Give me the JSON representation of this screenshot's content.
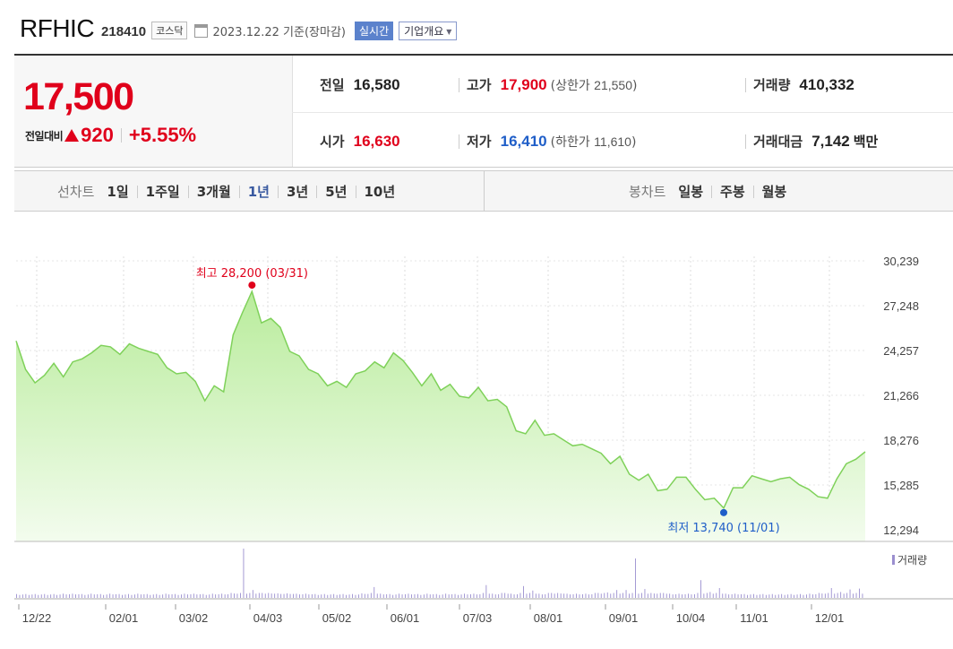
{
  "header": {
    "company": "RFHIC",
    "code": "218410",
    "market": "코스닥",
    "as_of": "2023.12.22  기준(장마감)",
    "realtime_btn": "실시간",
    "corp_info_btn": "기업개요"
  },
  "price": {
    "current": "17,500",
    "change_label": "전일대비",
    "change": "920",
    "change_pct": "+5.55%"
  },
  "stats": {
    "prev_label": "전일",
    "prev": "16,580",
    "high_label": "고가",
    "high": "17,900",
    "upper_label": "(상한가",
    "upper": "21,550",
    "upper_close": ")",
    "volume_label": "거래량",
    "volume": "410,332",
    "open_label": "시가",
    "open": "16,630",
    "low_label": "저가",
    "low": "16,410",
    "lower_label": "(하한가",
    "lower": "11,610",
    "lower_close": ")",
    "amount_label": "거래대금",
    "amount": "7,142",
    "amount_unit": "백만"
  },
  "tabs": {
    "line_label": "선차트",
    "line_items": [
      "1일",
      "1주일",
      "3개월",
      "1년",
      "3년",
      "5년",
      "10년"
    ],
    "line_selected": "1년",
    "candle_label": "봉차트",
    "candle_items": [
      "일봉",
      "주봉",
      "월봉"
    ]
  },
  "colors": {
    "up": "#e0001b",
    "down": "#1f5ec8",
    "line": "#7fd15a",
    "volume": "#9b8fcf",
    "selected_tab": "#3a5aa0"
  },
  "chart_data": {
    "type": "area",
    "y_ticks": [
      "30,239",
      "27,248",
      "24,257",
      "21,266",
      "18,276",
      "15,285",
      "12,294"
    ],
    "ylim": [
      12294,
      30239
    ],
    "x_ticks": [
      "12/22",
      "02/01",
      "03/02",
      "04/03",
      "05/02",
      "06/01",
      "07/03",
      "08/01",
      "09/01",
      "10/04",
      "11/01",
      "12/01"
    ],
    "max_label": "최고 28,200 (03/31)",
    "min_label": "최저 13,740 (11/01)",
    "volume_legend": "거래량",
    "series": [
      {
        "values": [
          24900,
          23000,
          22100,
          22600,
          23400,
          22500,
          23500,
          23700,
          24100,
          24600,
          24500,
          24000,
          24700,
          24400,
          24200,
          24000,
          23100,
          22700,
          22800,
          22200,
          20900,
          21900,
          21500,
          25300,
          26800,
          28200,
          26100,
          26400,
          25800,
          24200,
          23900,
          23000,
          22700,
          21900,
          22200,
          21800,
          22700,
          22900,
          23500,
          23100,
          24100,
          23600,
          22800,
          21900,
          22700,
          21600,
          22000,
          21200,
          21100,
          21800,
          20900,
          21000,
          20500,
          18900,
          18700,
          19600,
          18600,
          18700,
          18300,
          17900,
          18000,
          17700,
          17400,
          16700,
          17200,
          16000,
          15600,
          16000,
          14900,
          15000,
          15800,
          15800,
          15000,
          14300,
          14400,
          13740,
          15100,
          15100,
          15900,
          15700,
          15500,
          15700,
          15800,
          15300,
          15000,
          14500,
          14400,
          15700,
          16700,
          17000,
          17500
        ]
      }
    ],
    "volume": [
      0.06,
      0.06,
      0.06,
      0.06,
      0.06,
      0.07,
      0.07,
      0.06,
      0.07,
      0.06,
      0.07,
      0.06,
      0.06,
      0.07,
      0.06,
      0.06,
      0.07,
      0.06,
      0.07,
      0.07,
      0.06,
      0.07,
      0.07,
      0.09,
      1.0,
      0.16,
      0.1,
      0.09,
      0.08,
      0.08,
      0.07,
      0.07,
      0.06,
      0.06,
      0.06,
      0.06,
      0.06,
      0.08,
      0.22,
      0.07,
      0.06,
      0.07,
      0.07,
      0.06,
      0.07,
      0.06,
      0.07,
      0.06,
      0.07,
      0.07,
      0.26,
      0.07,
      0.1,
      0.07,
      0.24,
      0.15,
      0.07,
      0.1,
      0.09,
      0.07,
      0.07,
      0.07,
      0.1,
      0.11,
      0.16,
      0.16,
      0.8,
      0.18,
      0.09,
      0.1,
      0.07,
      0.07,
      0.07,
      0.36,
      0.12,
      0.2,
      0.07,
      0.07,
      0.06,
      0.06,
      0.06,
      0.06,
      0.06,
      0.06,
      0.06,
      0.07,
      0.09,
      0.2,
      0.12,
      0.17,
      0.19
    ]
  }
}
